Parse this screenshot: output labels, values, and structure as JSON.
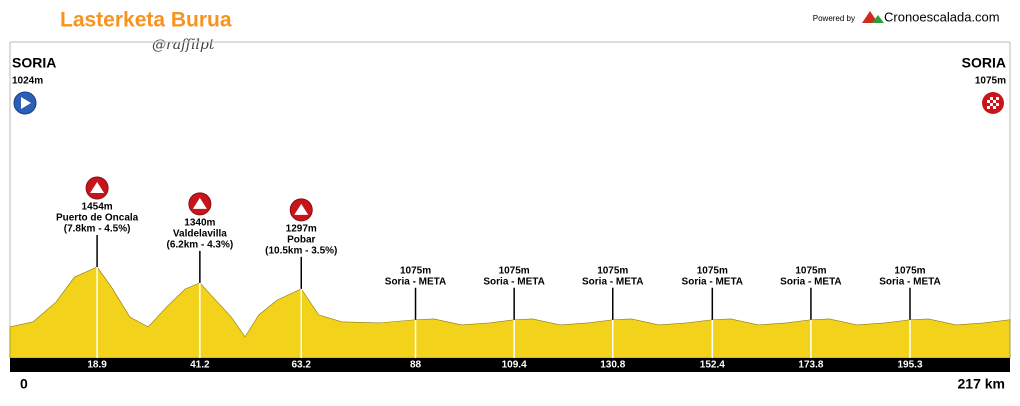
{
  "header": {
    "title": "Lasterketa Burua",
    "author": "@raffilpt",
    "powered_by": "Powered by",
    "brand": "Cronoescalada.com"
  },
  "chart_data": {
    "type": "area",
    "x": [
      0,
      5,
      10,
      14,
      18.9,
      22,
      26,
      30,
      34,
      38,
      41.2,
      44,
      48,
      51,
      54,
      58,
      63.2,
      67,
      72,
      80,
      88,
      92,
      98,
      104,
      109.4,
      113.4,
      119.4,
      125.4,
      130.8,
      134.8,
      140.8,
      146.8,
      152.4,
      156.4,
      162.4,
      168.4,
      173.8,
      177.8,
      183.8,
      189.8,
      195.3,
      199.3,
      205.3,
      211.3,
      217
    ],
    "values": [
      1024,
      1060,
      1203,
      1382,
      1454,
      1311,
      1095,
      1024,
      1167,
      1296,
      1340,
      1239,
      1095,
      952,
      1110,
      1217,
      1297,
      1110,
      1060,
      1052,
      1075,
      1081,
      1038,
      1052,
      1075,
      1081,
      1038,
      1052,
      1075,
      1081,
      1038,
      1052,
      1075,
      1081,
      1038,
      1052,
      1075,
      1081,
      1038,
      1052,
      1075,
      1081,
      1038,
      1052,
      1075
    ],
    "color": "#f3d21c",
    "xlim": [
      0,
      217
    ],
    "ylim": [
      800,
      1900
    ],
    "xticks": [
      0,
      {
        "value": 217,
        "label": "217 km"
      }
    ],
    "start": {
      "name": "SORIA",
      "elevation": "1024m"
    },
    "finish": {
      "name": "SORIA",
      "elevation": "1075m"
    },
    "points": [
      {
        "x": 18.9,
        "value": 1454,
        "value_label": "1454m",
        "name": "Puerto de Oncala",
        "detail": "(7.8km - 4.5%)"
      },
      {
        "x": 41.2,
        "value": 1340,
        "value_label": "1340m",
        "name": "Valdelavilla",
        "detail": "(6.2km - 4.3%)"
      },
      {
        "x": 63.2,
        "value": 1297,
        "value_label": "1297m",
        "name": "Pobar",
        "detail": "(10.5km - 3.5%)"
      },
      {
        "x": 88,
        "value": 1075,
        "value_label": "1075m",
        "name": "Soria - META"
      },
      {
        "x": 109.4,
        "value": 1075,
        "value_label": "1075m",
        "name": "Soria - META"
      },
      {
        "x": 130.8,
        "value": 1075,
        "value_label": "1075m",
        "name": "Soria - META"
      },
      {
        "x": 152.4,
        "value": 1075,
        "value_label": "1075m",
        "name": "Soria - META"
      },
      {
        "x": 173.8,
        "value": 1075,
        "value_label": "1075m",
        "name": "Soria - META"
      },
      {
        "x": 195.3,
        "value": 1075,
        "value_label": "1075m",
        "name": "Soria - META"
      }
    ]
  }
}
